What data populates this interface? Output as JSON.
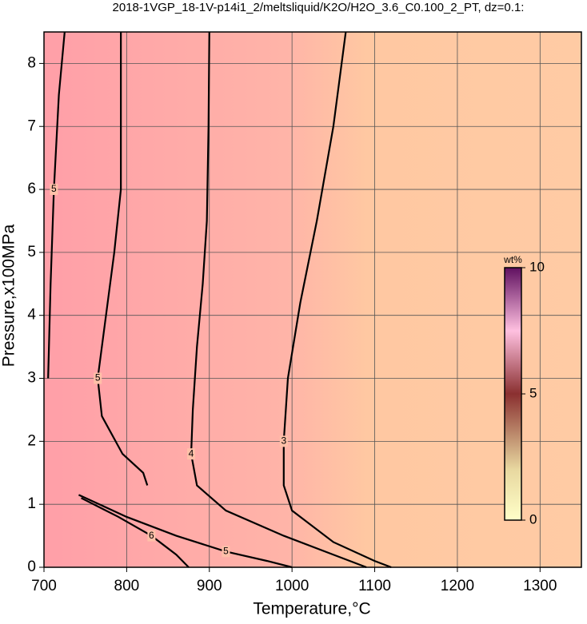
{
  "chart_data": {
    "type": "contour",
    "title": "2018-1VGP_18-1V-p14i1_2/meltsliquid/K2O/H2O_3.6_C0.100_2_PT, dz=0.1:",
    "x_label": "Temperature,°C",
    "y_label": "Pressure,x100MPa",
    "xlim": [
      700,
      1350
    ],
    "ylim": [
      0,
      8.5
    ],
    "xticks": [
      700,
      800,
      900,
      1000,
      1100,
      1200,
      1300
    ],
    "yticks": [
      0,
      1,
      2,
      3,
      4,
      5,
      6,
      7,
      8
    ],
    "grid": true,
    "contours": [
      {
        "level": 3,
        "x": [
          1065,
          1050,
          1030,
          1010,
          995,
          990,
          990,
          1000,
          1050,
          1100,
          1120
        ],
        "y": [
          8.5,
          7,
          5.5,
          4.2,
          3,
          2,
          1.3,
          0.9,
          0.4,
          0.1,
          0
        ]
      },
      {
        "level": 4,
        "x": [
          900,
          899,
          897,
          892,
          885,
          880,
          878,
          885,
          920,
          990,
          1050,
          1090
        ],
        "y": [
          8.5,
          7,
          5.5,
          4.5,
          3.5,
          2.5,
          1.8,
          1.3,
          0.9,
          0.5,
          0.2,
          0
        ]
      },
      {
        "level": 5,
        "x": [
          793,
          793,
          785,
          775,
          765,
          770,
          795,
          820,
          825
        ],
        "y": [
          8.5,
          6,
          5,
          4,
          3,
          2.4,
          1.8,
          1.5,
          1.3
        ]
      },
      {
        "level": 5,
        "x": [
          742,
          800,
          860,
          920,
          970,
          1000
        ],
        "y": [
          1.15,
          0.8,
          0.5,
          0.25,
          0.1,
          0
        ]
      },
      {
        "level": 6,
        "x": [
          745,
          790,
          830,
          860,
          875
        ],
        "y": [
          1.1,
          0.8,
          0.5,
          0.2,
          0
        ]
      },
      {
        "level": 5,
        "x": [
          725,
          718,
          712,
          708,
          705
        ],
        "y": [
          8.5,
          7.5,
          6,
          4.5,
          3
        ]
      }
    ],
    "colorbar": {
      "label": "wt%",
      "lim": [
        0,
        10
      ],
      "ticks": [
        0,
        5,
        10
      ]
    }
  }
}
